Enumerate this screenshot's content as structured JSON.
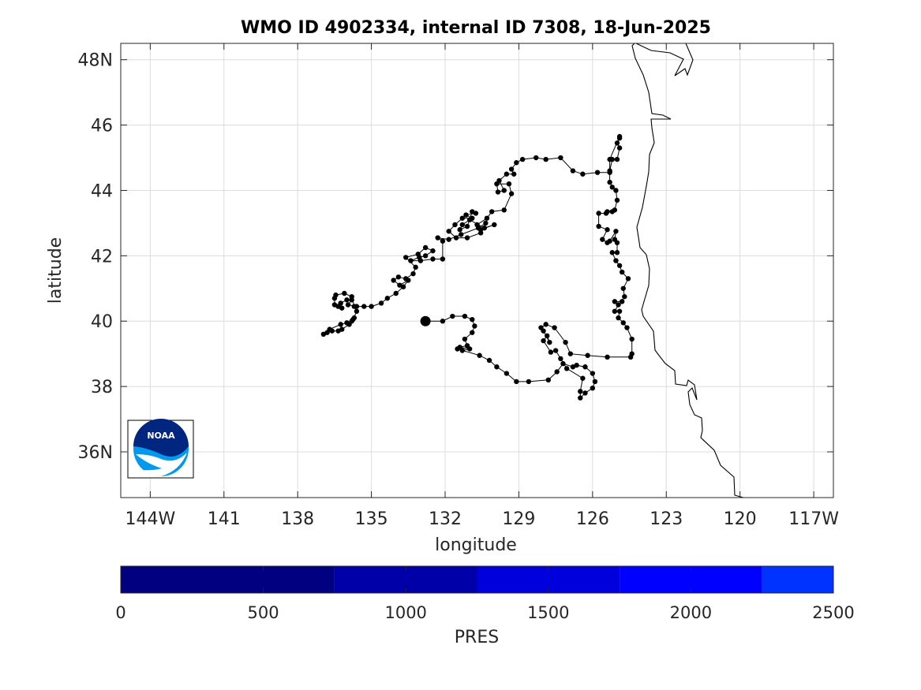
{
  "chart_data": {
    "type": "scatter",
    "title": "WMO ID 4902334, internal ID 7308, 18-Jun-2025",
    "xlabel": "longitude",
    "ylabel": "latitude",
    "xlim": [
      -145.2,
      -116.2
    ],
    "ylim": [
      34.6,
      48.5
    ],
    "grid": true,
    "x_ticks": [
      {
        "value": -144,
        "label": "144W"
      },
      {
        "value": -141,
        "label": "141"
      },
      {
        "value": -138,
        "label": "138"
      },
      {
        "value": -135,
        "label": "135"
      },
      {
        "value": -132,
        "label": "132"
      },
      {
        "value": -129,
        "label": "129"
      },
      {
        "value": -126,
        "label": "126"
      },
      {
        "value": -123,
        "label": "123"
      },
      {
        "value": -120,
        "label": "120"
      },
      {
        "value": -117,
        "label": "117W"
      }
    ],
    "y_ticks": [
      {
        "value": 36,
        "label": "36N"
      },
      {
        "value": 38,
        "label": "38"
      },
      {
        "value": 40,
        "label": "40"
      },
      {
        "value": 42,
        "label": "42"
      },
      {
        "value": 44,
        "label": "44"
      },
      {
        "value": 46,
        "label": "46"
      },
      {
        "value": 48,
        "label": "48N"
      }
    ],
    "track": {
      "start": [
        -132.8,
        40.0
      ],
      "points": [
        [
          -132.8,
          40.0
        ],
        [
          -132.1,
          40.0
        ],
        [
          -131.7,
          40.15
        ],
        [
          -131.2,
          40.15
        ],
        [
          -130.9,
          40.05
        ],
        [
          -130.8,
          39.85
        ],
        [
          -130.9,
          39.65
        ],
        [
          -131.2,
          39.45
        ],
        [
          -131.1,
          39.25
        ],
        [
          -131.4,
          39.2
        ],
        [
          -131.0,
          39.15
        ],
        [
          -131.3,
          39.1
        ],
        [
          -131.5,
          39.15
        ],
        [
          -130.6,
          38.95
        ],
        [
          -130.2,
          38.8
        ],
        [
          -129.9,
          38.6
        ],
        [
          -129.5,
          38.4
        ],
        [
          -129.1,
          38.15
        ],
        [
          -128.6,
          38.15
        ],
        [
          -127.8,
          38.2
        ],
        [
          -127.45,
          38.45
        ],
        [
          -127.2,
          38.7
        ],
        [
          -126.8,
          38.6
        ],
        [
          -126.65,
          38.65
        ],
        [
          -126.3,
          38.6
        ],
        [
          -126.0,
          38.4
        ],
        [
          -125.9,
          38.15
        ],
        [
          -126.0,
          37.95
        ],
        [
          -126.3,
          37.8
        ],
        [
          -126.5,
          37.65
        ],
        [
          -126.5,
          37.85
        ],
        [
          -126.4,
          38.25
        ],
        [
          -127.05,
          38.55
        ],
        [
          -127.3,
          38.85
        ],
        [
          -127.5,
          39.1
        ],
        [
          -127.7,
          39.05
        ],
        [
          -128.0,
          39.4
        ],
        [
          -127.85,
          39.55
        ],
        [
          -127.75,
          39.35
        ],
        [
          -128.0,
          39.7
        ],
        [
          -128.1,
          39.8
        ],
        [
          -127.9,
          39.9
        ],
        [
          -127.55,
          39.8
        ],
        [
          -127.1,
          39.35
        ],
        [
          -126.9,
          39.0
        ],
        [
          -126.2,
          38.95
        ],
        [
          -125.4,
          38.9
        ],
        [
          -124.45,
          38.9
        ],
        [
          -124.4,
          39.0
        ],
        [
          -124.4,
          39.45
        ],
        [
          -124.6,
          39.8
        ],
        [
          -124.75,
          39.95
        ],
        [
          -124.95,
          40.1
        ],
        [
          -124.9,
          40.3
        ],
        [
          -125.1,
          40.3
        ],
        [
          -124.95,
          40.5
        ],
        [
          -125.1,
          40.6
        ],
        [
          -124.8,
          40.6
        ],
        [
          -124.7,
          40.75
        ],
        [
          -124.75,
          41.0
        ],
        [
          -124.55,
          41.3
        ],
        [
          -124.8,
          41.5
        ],
        [
          -124.9,
          41.7
        ],
        [
          -125.05,
          41.85
        ],
        [
          -125.2,
          42.1
        ],
        [
          -125.0,
          42.1
        ],
        [
          -125.0,
          42.4
        ],
        [
          -125.1,
          42.5
        ],
        [
          -125.05,
          42.75
        ],
        [
          -125.3,
          42.45
        ],
        [
          -125.4,
          42.4
        ],
        [
          -125.6,
          42.5
        ],
        [
          -125.4,
          42.8
        ],
        [
          -125.75,
          42.9
        ],
        [
          -125.75,
          43.3
        ],
        [
          -125.45,
          43.3
        ],
        [
          -125.4,
          43.35
        ],
        [
          -125.2,
          43.35
        ],
        [
          -125.1,
          43.4
        ],
        [
          -125.0,
          43.7
        ],
        [
          -125.05,
          44.0
        ],
        [
          -125.2,
          44.1
        ],
        [
          -125.3,
          44.25
        ],
        [
          -125.3,
          44.6
        ],
        [
          -125.2,
          44.95
        ],
        [
          -125.0,
          44.95
        ],
        [
          -124.9,
          45.3
        ],
        [
          -125.0,
          45.45
        ],
        [
          -124.9,
          45.6
        ],
        [
          -124.9,
          45.65
        ],
        [
          -125.3,
          44.95
        ],
        [
          -125.3,
          44.55
        ],
        [
          -125.8,
          44.55
        ],
        [
          -126.4,
          44.5
        ],
        [
          -126.8,
          44.6
        ],
        [
          -127.3,
          45.0
        ],
        [
          -127.9,
          44.95
        ],
        [
          -128.3,
          45.0
        ],
        [
          -128.85,
          44.95
        ],
        [
          -129.1,
          44.85
        ],
        [
          -129.3,
          44.65
        ],
        [
          -129.2,
          44.5
        ],
        [
          -129.5,
          44.5
        ],
        [
          -129.8,
          44.3
        ],
        [
          -129.6,
          44.0
        ],
        [
          -129.85,
          43.95
        ],
        [
          -129.9,
          44.2
        ],
        [
          -129.4,
          44.2
        ],
        [
          -129.3,
          43.9
        ],
        [
          -129.6,
          43.4
        ],
        [
          -130.1,
          43.35
        ],
        [
          -130.3,
          43.15
        ],
        [
          -130.7,
          42.95
        ],
        [
          -130.55,
          42.8
        ],
        [
          -130.0,
          42.95
        ],
        [
          -130.4,
          42.85
        ],
        [
          -131.0,
          43.1
        ],
        [
          -131.3,
          42.95
        ],
        [
          -131.4,
          42.8
        ],
        [
          -131.1,
          42.9
        ],
        [
          -130.9,
          43.35
        ],
        [
          -130.75,
          43.3
        ],
        [
          -131.15,
          43.25
        ],
        [
          -130.9,
          43.15
        ],
        [
          -131.3,
          43.15
        ],
        [
          -131.6,
          42.95
        ],
        [
          -131.85,
          42.75
        ],
        [
          -131.55,
          42.55
        ],
        [
          -131.1,
          42.55
        ],
        [
          -130.55,
          42.7
        ],
        [
          -130.35,
          43.0
        ],
        [
          -130.65,
          42.85
        ],
        [
          -131.35,
          42.65
        ],
        [
          -131.85,
          42.5
        ],
        [
          -132.3,
          42.55
        ],
        [
          -132.1,
          42.45
        ],
        [
          -132.1,
          41.9
        ],
        [
          -132.5,
          41.9
        ],
        [
          -133.0,
          41.85
        ],
        [
          -133.4,
          41.85
        ],
        [
          -133.05,
          41.95
        ],
        [
          -132.8,
          42.0
        ],
        [
          -132.5,
          42.15
        ],
        [
          -132.8,
          42.25
        ],
        [
          -133.1,
          42.05
        ],
        [
          -133.6,
          41.95
        ],
        [
          -133.2,
          41.65
        ],
        [
          -133.3,
          41.45
        ],
        [
          -133.6,
          41.3
        ],
        [
          -133.9,
          41.35
        ],
        [
          -134.1,
          41.25
        ],
        [
          -133.85,
          41.1
        ],
        [
          -133.5,
          41.25
        ],
        [
          -133.7,
          41.05
        ],
        [
          -134.0,
          40.85
        ],
        [
          -134.35,
          40.7
        ],
        [
          -134.6,
          40.55
        ],
        [
          -135.0,
          40.45
        ],
        [
          -135.3,
          40.45
        ],
        [
          -135.6,
          40.45
        ],
        [
          -135.95,
          40.5
        ],
        [
          -135.8,
          40.65
        ],
        [
          -136.0,
          40.65
        ],
        [
          -136.25,
          40.55
        ],
        [
          -136.35,
          40.45
        ],
        [
          -136.2,
          40.4
        ],
        [
          -136.5,
          40.5
        ],
        [
          -136.5,
          40.7
        ],
        [
          -136.45,
          40.8
        ],
        [
          -136.1,
          40.85
        ],
        [
          -135.8,
          40.75
        ],
        [
          -135.7,
          40.45
        ],
        [
          -135.6,
          40.3
        ],
        [
          -135.75,
          40.05
        ],
        [
          -135.9,
          39.9
        ],
        [
          -136.2,
          39.75
        ],
        [
          -136.35,
          39.7
        ],
        [
          -136.6,
          39.7
        ],
        [
          -136.8,
          39.65
        ],
        [
          -136.95,
          39.6
        ],
        [
          -136.7,
          39.75
        ],
        [
          -136.25,
          39.9
        ],
        [
          -136.0,
          39.95
        ],
        [
          -135.8,
          40.0
        ],
        [
          -135.7,
          40.1
        ]
      ]
    },
    "coastline_label": "",
    "colorbar": {
      "label": "PRES",
      "range": [
        0,
        2500
      ],
      "ticks": [
        0,
        500,
        1000,
        1500,
        2000,
        2500
      ],
      "bins": [
        {
          "from": 0,
          "to": 750,
          "color": "#000080"
        },
        {
          "from": 750,
          "to": 1250,
          "color": "#0000a8"
        },
        {
          "from": 1250,
          "to": 1750,
          "color": "#0000dc"
        },
        {
          "from": 1750,
          "to": 2250,
          "color": "#0000ff"
        },
        {
          "from": 2250,
          "to": 2500,
          "color": "#0033ff"
        }
      ]
    },
    "logo_text": "NOAA"
  }
}
